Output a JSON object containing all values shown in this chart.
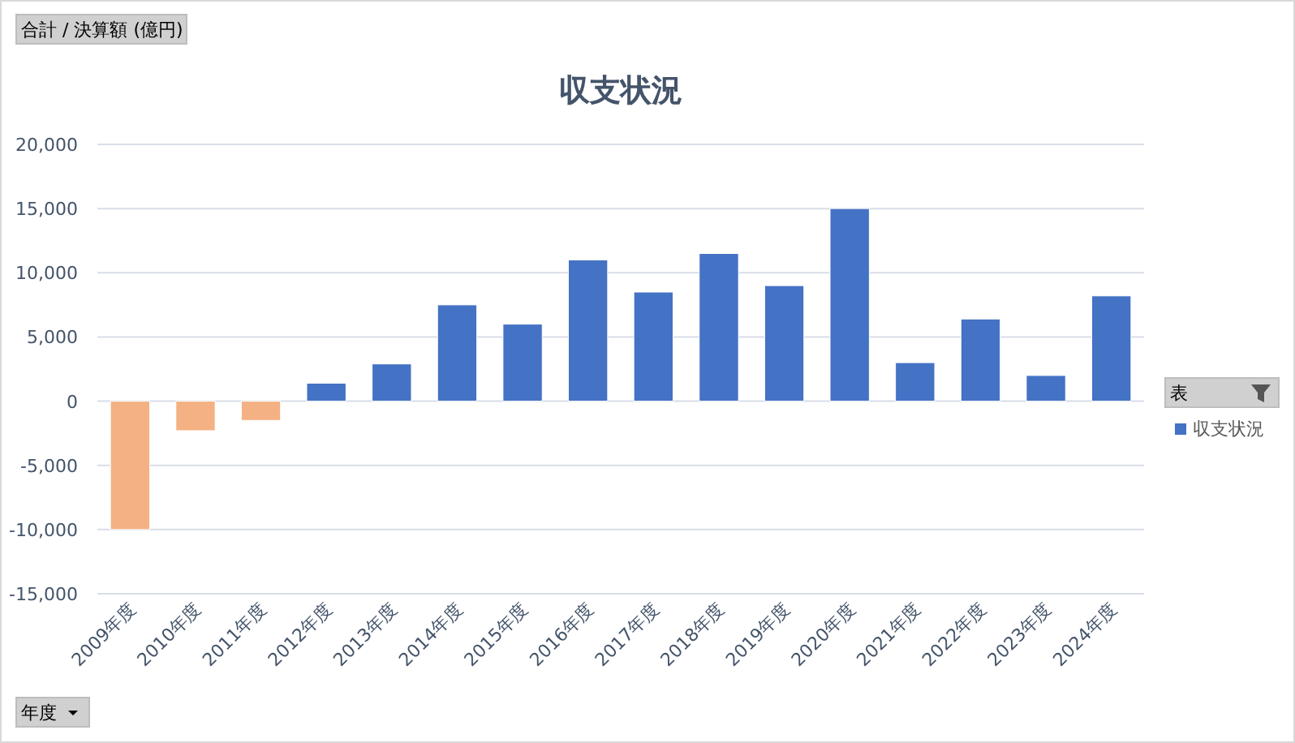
{
  "chart_data": {
    "type": "bar",
    "title": "収支状況",
    "categories": [
      "2009年度",
      "2010年度",
      "2011年度",
      "2012年度",
      "2013年度",
      "2014年度",
      "2015年度",
      "2016年度",
      "2017年度",
      "2018年度",
      "2019年度",
      "2020年度",
      "2021年度",
      "2022年度",
      "2023年度",
      "2024年度"
    ],
    "series": [
      {
        "name": "収支状況",
        "color": "#4472c4",
        "values": [
          -10000,
          -2300,
          -1500,
          1400,
          2900,
          7500,
          6000,
          11000,
          8500,
          11500,
          9000,
          15000,
          3000,
          6400,
          2000,
          8200
        ],
        "colors": [
          "#f4b183",
          "#f4b183",
          "#f4b183",
          "#4472c4",
          "#4472c4",
          "#4472c4",
          "#4472c4",
          "#4472c4",
          "#4472c4",
          "#4472c4",
          "#4472c4",
          "#4472c4",
          "#4472c4",
          "#4472c4",
          "#4472c4",
          "#4472c4"
        ]
      }
    ],
    "ylim": [
      -15000,
      20000
    ],
    "yticks": [
      {
        "value": -15000,
        "label": "-15,000"
      },
      {
        "value": -10000,
        "label": "-10,000"
      },
      {
        "value": -5000,
        "label": "-5,000"
      },
      0,
      {
        "value": 5000,
        "label": "5,000"
      },
      {
        "value": 10000,
        "label": "10,000"
      },
      {
        "value": 15000,
        "label": "15,000"
      },
      {
        "value": 20000,
        "label": "20,000"
      }
    ],
    "grid": "y",
    "legend": "right",
    "annotations": [
      "合計 / 決算額 (億円)",
      "表",
      "年度"
    ]
  }
}
